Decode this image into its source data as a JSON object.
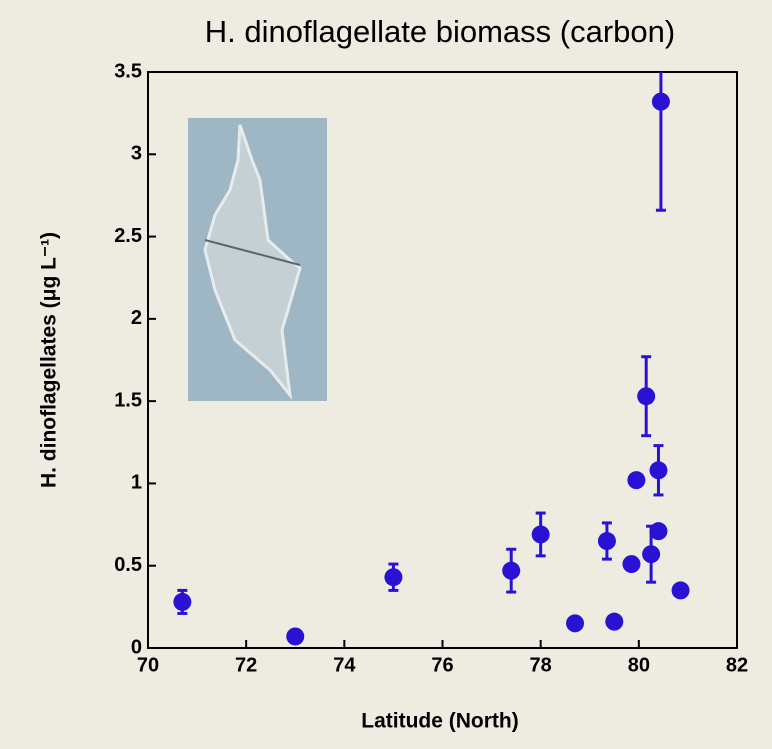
{
  "chart_data": {
    "type": "scatter",
    "title": "H. dinoflagellate biomass (carbon)",
    "xlabel": "Latitude (North)",
    "ylabel": "H. dinoflagellates (μg L⁻¹)",
    "x": [
      70.7,
      73.0,
      75.0,
      77.4,
      78.0,
      78.7,
      79.35,
      79.5,
      79.85,
      79.95,
      80.15,
      80.25,
      80.4,
      80.4,
      80.45,
      80.85
    ],
    "y": [
      0.28,
      0.07,
      0.43,
      0.47,
      0.69,
      0.15,
      0.65,
      0.16,
      0.51,
      1.02,
      1.53,
      0.57,
      1.08,
      0.71,
      3.32,
      0.35
    ],
    "yerr": [
      0.07,
      null,
      0.08,
      0.13,
      0.13,
      null,
      0.11,
      null,
      null,
      null,
      0.24,
      0.17,
      0.15,
      null,
      0.66,
      null
    ],
    "color": "#2a12d4",
    "xlim": [
      70,
      82
    ],
    "xticks": [
      70,
      72,
      74,
      76,
      78,
      80,
      82
    ],
    "ylim": [
      0,
      3.5
    ],
    "yticks": [
      0,
      0.5,
      1,
      1.5,
      2,
      2.5,
      3,
      3.5
    ]
  }
}
